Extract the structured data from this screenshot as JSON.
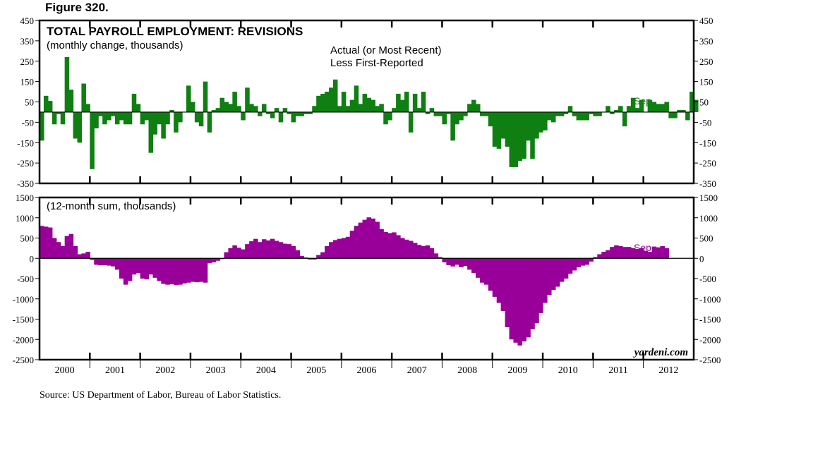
{
  "figure_label": "Figure 320.",
  "source": "Source: US Department of Labor, Bureau of Labor Statistics.",
  "watermark": "yardeni.com",
  "colors": {
    "top_bar": "#0f7f12",
    "bottom_bar": "#990099",
    "frame": "#000000",
    "zero_line": "#000000"
  },
  "chart_data": [
    {
      "type": "bar",
      "title": "TOTAL PAYROLL EMPLOYMENT: REVISIONS",
      "subtitle": "(monthly change, thousands)",
      "annotation": [
        "Actual (or Most Recent)",
        "Less First-Reported"
      ],
      "end_label": "Sep",
      "start": "2000-01",
      "end": "2011-09",
      "ylim": [
        -350,
        450
      ],
      "yticks": [
        450,
        350,
        250,
        150,
        50,
        -50,
        -150,
        -250,
        -350
      ],
      "values": [
        -140,
        80,
        55,
        -60,
        -10,
        -60,
        270,
        110,
        -130,
        -150,
        140,
        40,
        -280,
        -80,
        -20,
        -60,
        -40,
        -20,
        -60,
        -40,
        -60,
        -60,
        90,
        40,
        -60,
        -40,
        -200,
        -110,
        -60,
        -130,
        -60,
        10,
        -100,
        -50,
        0,
        130,
        50,
        -50,
        -70,
        150,
        -100,
        10,
        20,
        70,
        50,
        40,
        100,
        30,
        -40,
        120,
        40,
        30,
        -20,
        40,
        -10,
        -30,
        20,
        -50,
        20,
        -10,
        -50,
        -20,
        -20,
        -10,
        -10,
        30,
        80,
        90,
        100,
        120,
        160,
        30,
        100,
        30,
        60,
        130,
        40,
        90,
        70,
        60,
        30,
        40,
        -60,
        -40,
        20,
        90,
        60,
        100,
        -100,
        90,
        20,
        100,
        -10,
        20,
        -20,
        -20,
        -60,
        -10,
        -140,
        -60,
        -40,
        -20,
        40,
        60,
        40,
        -20,
        -20,
        -70,
        -170,
        -180,
        -130,
        -170,
        -270,
        -270,
        -240,
        -230,
        -140,
        -230,
        -130,
        -100,
        -90,
        -40,
        -50,
        -20,
        -20,
        -10,
        30,
        -20,
        -40,
        -40,
        -40,
        -10,
        -20,
        -20,
        0,
        30,
        -10,
        10,
        30,
        -70,
        30,
        70,
        20,
        60,
        0,
        60,
        50,
        40,
        40,
        50,
        -30,
        -30,
        10,
        10,
        -40,
        100,
        60
      ]
    },
    {
      "type": "bar",
      "subtitle": "(12-month sum, thousands)",
      "end_label": "Sep",
      "start": "2000-01",
      "end": "2011-09",
      "ylim": [
        -2500,
        1500
      ],
      "yticks": [
        1500,
        1000,
        500,
        0,
        -500,
        -1000,
        -1500,
        -2000,
        -2500
      ],
      "values": [
        800,
        780,
        760,
        500,
        400,
        300,
        550,
        600,
        300,
        100,
        120,
        160,
        -40,
        -160,
        -170,
        -170,
        -180,
        -200,
        -280,
        -500,
        -650,
        -560,
        -400,
        -360,
        -500,
        -520,
        -400,
        -480,
        -560,
        -630,
        -650,
        -640,
        -660,
        -650,
        -620,
        -600,
        -580,
        -590,
        -580,
        -600,
        -120,
        -100,
        -60,
        -20,
        150,
        250,
        320,
        260,
        220,
        350,
        420,
        480,
        400,
        470,
        440,
        480,
        430,
        400,
        360,
        350,
        300,
        200,
        60,
        20,
        -30,
        -30,
        80,
        150,
        300,
        400,
        450,
        480,
        500,
        530,
        680,
        800,
        880,
        950,
        1010,
        980,
        900,
        720,
        650,
        620,
        640,
        570,
        500,
        460,
        430,
        380,
        330,
        300,
        320,
        250,
        120,
        30,
        -100,
        -170,
        -200,
        -160,
        -220,
        -190,
        -280,
        -360,
        -480,
        -600,
        -650,
        -800,
        -950,
        -1100,
        -1300,
        -1700,
        -2000,
        -2080,
        -2150,
        -2050,
        -1950,
        -1750,
        -1600,
        -1350,
        -1100,
        -900,
        -780,
        -700,
        -580,
        -500,
        -380,
        -300,
        -220,
        -180,
        -160,
        -80,
        30,
        100,
        160,
        200,
        280,
        320,
        300,
        280,
        280,
        250,
        230,
        250,
        180,
        160,
        290,
        270,
        300,
        250
      ]
    }
  ],
  "x_axis": {
    "years": [
      "2000",
      "2001",
      "2002",
      "2003",
      "2004",
      "2005",
      "2006",
      "2007",
      "2008",
      "2009",
      "2010",
      "2011",
      "2012"
    ]
  }
}
